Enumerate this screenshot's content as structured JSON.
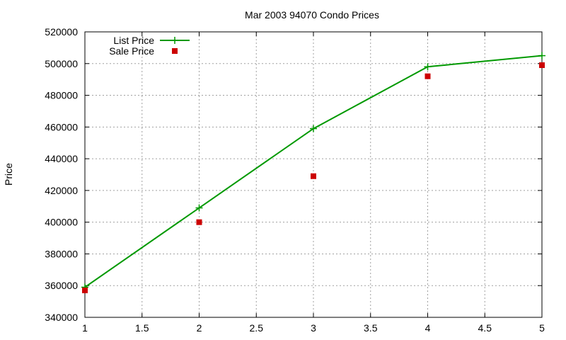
{
  "chart_data": {
    "type": "line",
    "title": "Mar 2003 94070 Condo Prices",
    "xlabel": "",
    "ylabel": "Price",
    "xlim": [
      1,
      5
    ],
    "ylim": [
      340000,
      520000
    ],
    "x_ticks": [
      1,
      1.5,
      2,
      2.5,
      3,
      3.5,
      4,
      4.5,
      5
    ],
    "x_tick_labels": [
      "1",
      "1.5",
      "2",
      "2.5",
      "3",
      "3.5",
      "4",
      "4.5",
      "5"
    ],
    "y_ticks": [
      340000,
      360000,
      380000,
      400000,
      420000,
      440000,
      460000,
      480000,
      500000,
      520000
    ],
    "y_tick_labels": [
      "340000",
      "360000",
      "380000",
      "400000",
      "420000",
      "440000",
      "460000",
      "480000",
      "500000",
      "520000"
    ],
    "grid": true,
    "legend_position": "top-left",
    "series": [
      {
        "name": "List Price",
        "style": "linespoints",
        "marker": "plus",
        "color": "#009900",
        "x": [
          1,
          2,
          3,
          4,
          5
        ],
        "y": [
          359000,
          409000,
          459000,
          498000,
          505000
        ]
      },
      {
        "name": "Sale Price",
        "style": "points",
        "marker": "square",
        "color": "#cc0000",
        "x": [
          1,
          2,
          3,
          4,
          5
        ],
        "y": [
          357000,
          400000,
          429000,
          492000,
          499000
        ]
      }
    ]
  }
}
